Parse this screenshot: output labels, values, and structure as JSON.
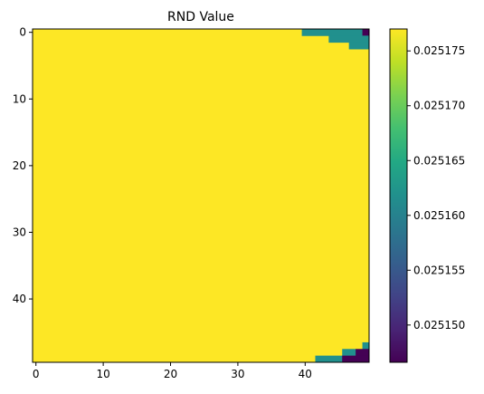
{
  "chart_data": {
    "type": "heatmap",
    "title": "RND Value",
    "xlabel": "",
    "ylabel": "",
    "grid": false,
    "shape": [
      50,
      50
    ],
    "x_ticks": [
      0,
      10,
      20,
      30,
      40
    ],
    "y_ticks": [
      0,
      10,
      20,
      30,
      40
    ],
    "colormap": "viridis",
    "colorbar": {
      "vmin": 0.0251466,
      "vmax": 0.025177,
      "ticks": [
        "0.025150",
        "0.025155",
        "0.025160",
        "0.025165",
        "0.025170",
        "0.025175"
      ],
      "tick_values": [
        0.02515,
        0.025155,
        0.02516,
        0.025165,
        0.02517,
        0.025175
      ],
      "placement": "right"
    },
    "base_value": 0.025177,
    "cells": [
      {
        "row": 0,
        "col_start": 40,
        "col_end": 47,
        "value": 0.0251625
      },
      {
        "row": 0,
        "col_start": 48,
        "col_end": 48,
        "value": 0.0251625
      },
      {
        "row": 0,
        "col_start": 49,
        "col_end": 49,
        "value": 0.0251466
      },
      {
        "row": 1,
        "col_start": 44,
        "col_end": 49,
        "value": 0.0251625
      },
      {
        "row": 2,
        "col_start": 47,
        "col_end": 49,
        "value": 0.0251625
      },
      {
        "row": 47,
        "col_start": 49,
        "col_end": 49,
        "value": 0.0251625
      },
      {
        "row": 48,
        "col_start": 46,
        "col_end": 47,
        "value": 0.0251625
      },
      {
        "row": 48,
        "col_start": 48,
        "col_end": 49,
        "value": 0.0251466
      },
      {
        "row": 49,
        "col_start": 42,
        "col_end": 45,
        "value": 0.0251625
      },
      {
        "row": 49,
        "col_start": 46,
        "col_end": 49,
        "value": 0.0251466
      }
    ]
  },
  "colors": {
    "high": "#fde725",
    "mid": "#21908d",
    "low": "#440154"
  }
}
